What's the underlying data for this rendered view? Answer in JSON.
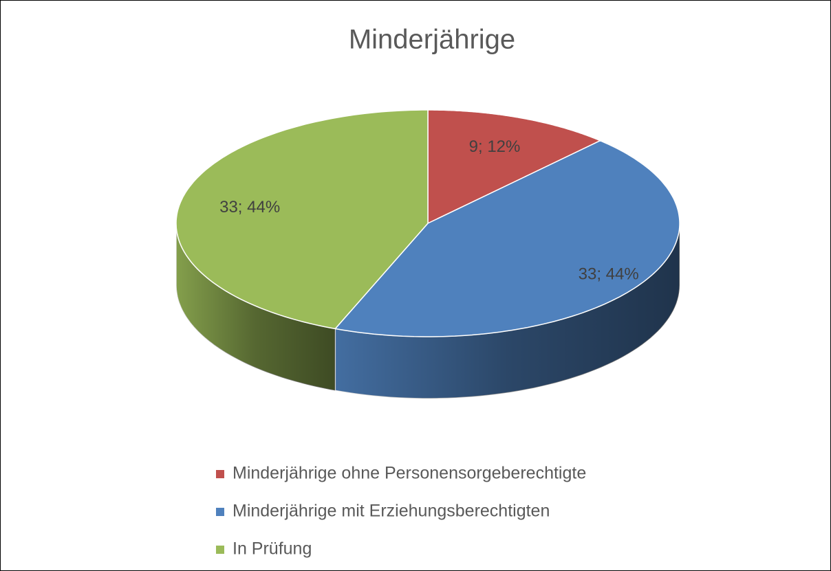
{
  "chart_data": {
    "type": "pie3d",
    "title": "Minderjährige",
    "categories": [
      "Minderjährige ohne Personensorgeberechtigte",
      "Minderjährige mit Erziehungsberechtigten",
      "In Prüfung"
    ],
    "values": [
      9,
      33,
      33
    ],
    "value_labels": [
      "9; 12%",
      "33; 44%",
      "33; 44%"
    ],
    "colors": [
      "#c0504d",
      "#4f81bd",
      "#9bbb59"
    ],
    "legend": "bottom"
  }
}
